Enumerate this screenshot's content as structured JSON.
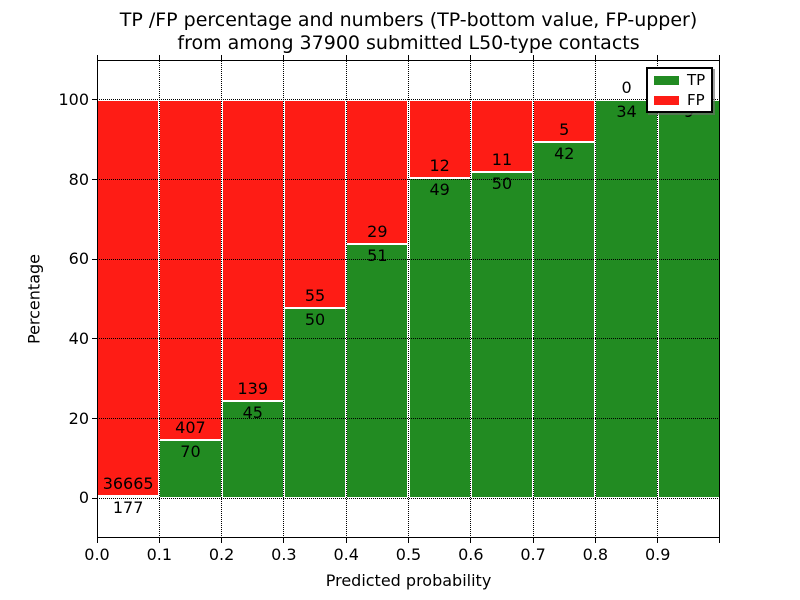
{
  "figure": {
    "title_line1": "TP /FP percentage and numbers (TP-bottom value, FP-upper)",
    "title_line2": "from among 37900 submitted L50-type contacts"
  },
  "chart_data": {
    "type": "bar",
    "variant": "stacked-percentage-histogram",
    "title": "TP /FP percentage and numbers (TP-bottom value, FP-upper)\nfrom among 37900 submitted L50-type contacts",
    "total_submitted": 37900,
    "xlabel": "Predicted probability",
    "ylabel": "Percentage",
    "xlim": [
      0.0,
      1.0
    ],
    "ylim": [
      -10,
      110
    ],
    "x_tick_labels": [
      "0.0",
      "0.1",
      "0.2",
      "0.3",
      "0.4",
      "0.5",
      "0.6",
      "0.7",
      "0.8",
      "0.9"
    ],
    "x_tick_values": [
      0.0,
      0.1,
      0.2,
      0.3,
      0.4,
      0.5,
      0.6,
      0.7,
      0.8,
      0.9
    ],
    "y_tick_values": [
      0,
      20,
      40,
      60,
      80,
      100
    ],
    "grid": "dotted",
    "bin_width": 0.1,
    "bin_starts": [
      0.0,
      0.1,
      0.2,
      0.3,
      0.4,
      0.5,
      0.6,
      0.7,
      0.8,
      0.9
    ],
    "series": [
      {
        "name": "TP",
        "color": "#228b22",
        "counts": [
          177,
          70,
          45,
          50,
          51,
          49,
          50,
          42,
          34,
          9
        ],
        "pct": [
          0.48,
          14.68,
          24.46,
          47.62,
          63.75,
          80.33,
          81.97,
          89.36,
          100.0,
          100.0
        ]
      },
      {
        "name": "FP",
        "color": "#fe1c15",
        "counts": [
          36665,
          407,
          139,
          55,
          29,
          12,
          11,
          5,
          0,
          0
        ],
        "pct": [
          99.52,
          85.32,
          75.54,
          52.38,
          36.25,
          19.67,
          18.03,
          10.64,
          0.0,
          0.0
        ]
      }
    ],
    "legend": {
      "position": "upper right",
      "entries": [
        {
          "label": "TP",
          "color": "#228b22"
        },
        {
          "label": "FP",
          "color": "#fe1c15"
        }
      ]
    }
  }
}
